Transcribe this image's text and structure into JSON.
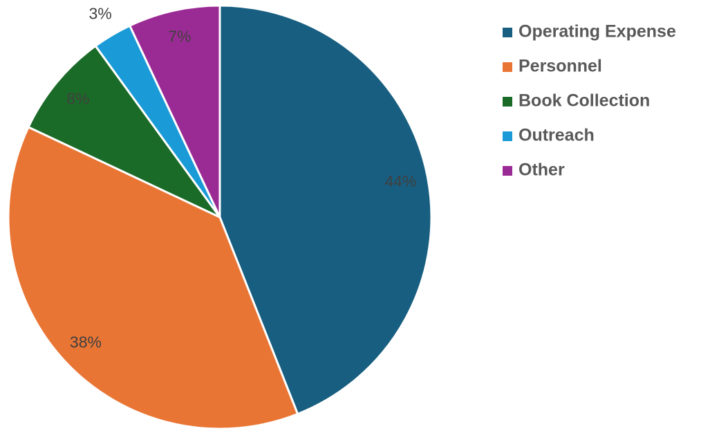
{
  "chart_data": {
    "type": "pie",
    "categories": [
      "Operating Expense",
      "Personnel",
      "Book Collection",
      "Outreach",
      "Other"
    ],
    "values": [
      44,
      38,
      8,
      3,
      7
    ],
    "value_labels": [
      "44%",
      "38%",
      "8%",
      "3%",
      "7%"
    ],
    "colors": [
      "#175e80",
      "#e97534",
      "#1b6b28",
      "#1a9ad6",
      "#9b2b94"
    ],
    "legend": "right"
  }
}
